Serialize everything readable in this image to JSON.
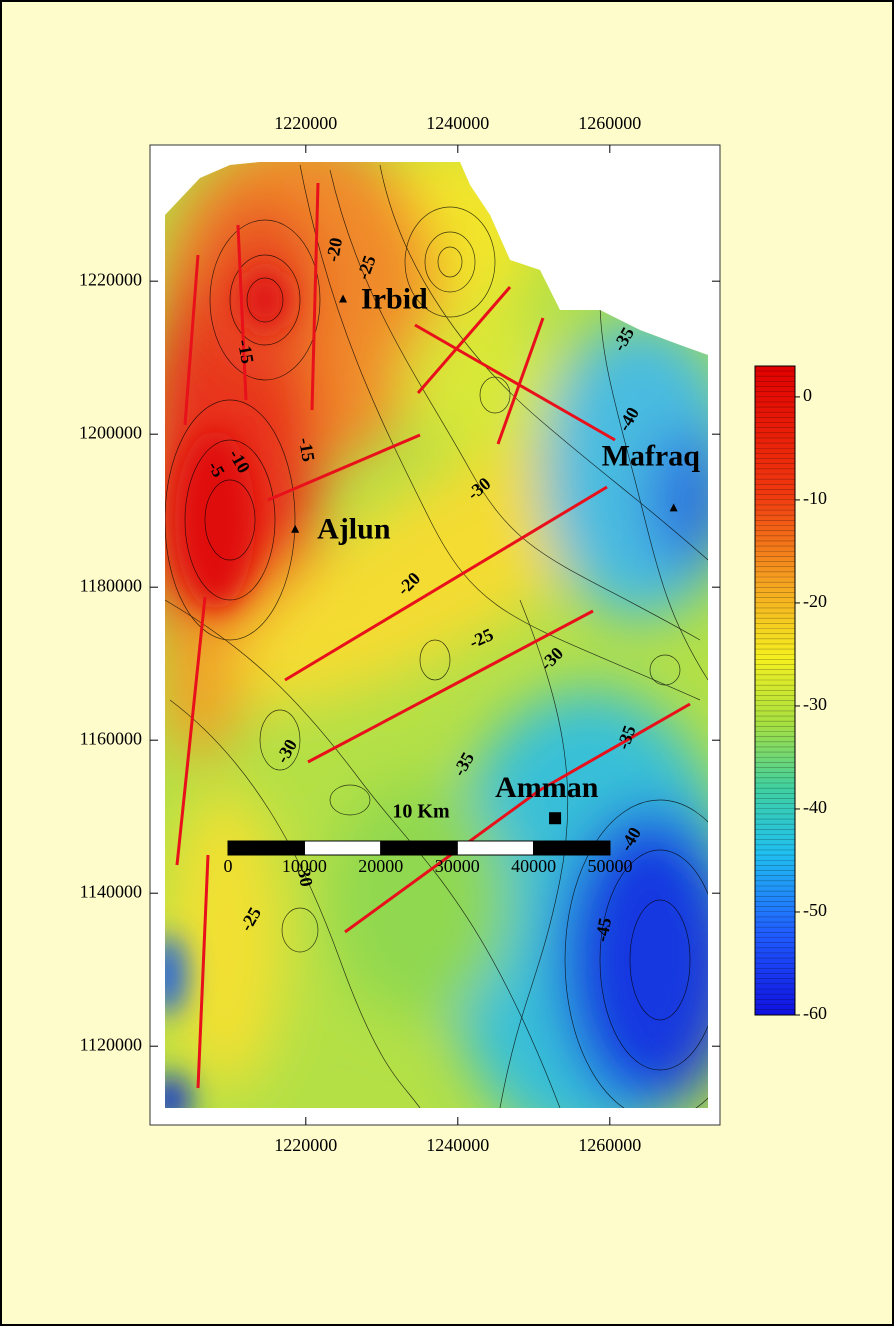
{
  "map": {
    "x_axis": {
      "lim": [
        1199500,
        1274500
      ],
      "ticks": [
        1220000,
        1240000,
        1260000
      ]
    },
    "y_axis": {
      "lim": [
        1109700,
        1237800
      ],
      "ticks": [
        1220000,
        1200000,
        1180000,
        1160000,
        1140000,
        1120000
      ]
    },
    "cities": [
      {
        "name": "Irbid",
        "x": 1224900,
        "y": 1217600,
        "marker": "triangle"
      },
      {
        "name": "Ajlun",
        "x": 1218600,
        "y": 1187500,
        "marker": "triangle"
      },
      {
        "name": "Mafraq",
        "x": 1268400,
        "y": 1190300,
        "marker": "triangle"
      },
      {
        "name": "Amman",
        "x": 1252800,
        "y": 1149800,
        "marker": "square"
      }
    ],
    "contour_labels": [
      -20,
      -25,
      -15,
      -15,
      -10,
      -5,
      -35,
      -40,
      -30,
      -20,
      -25,
      -30,
      -30,
      -35,
      -40,
      -30,
      -25,
      -45,
      -35
    ]
  },
  "colorbar": {
    "lim": [
      -60,
      3
    ],
    "ticks": [
      0,
      -10,
      -20,
      -30,
      -40,
      -50,
      -60
    ]
  },
  "scale_bar": {
    "label": "10 Km",
    "ticks": [
      0,
      10000,
      20000,
      30000,
      40000,
      50000
    ]
  }
}
